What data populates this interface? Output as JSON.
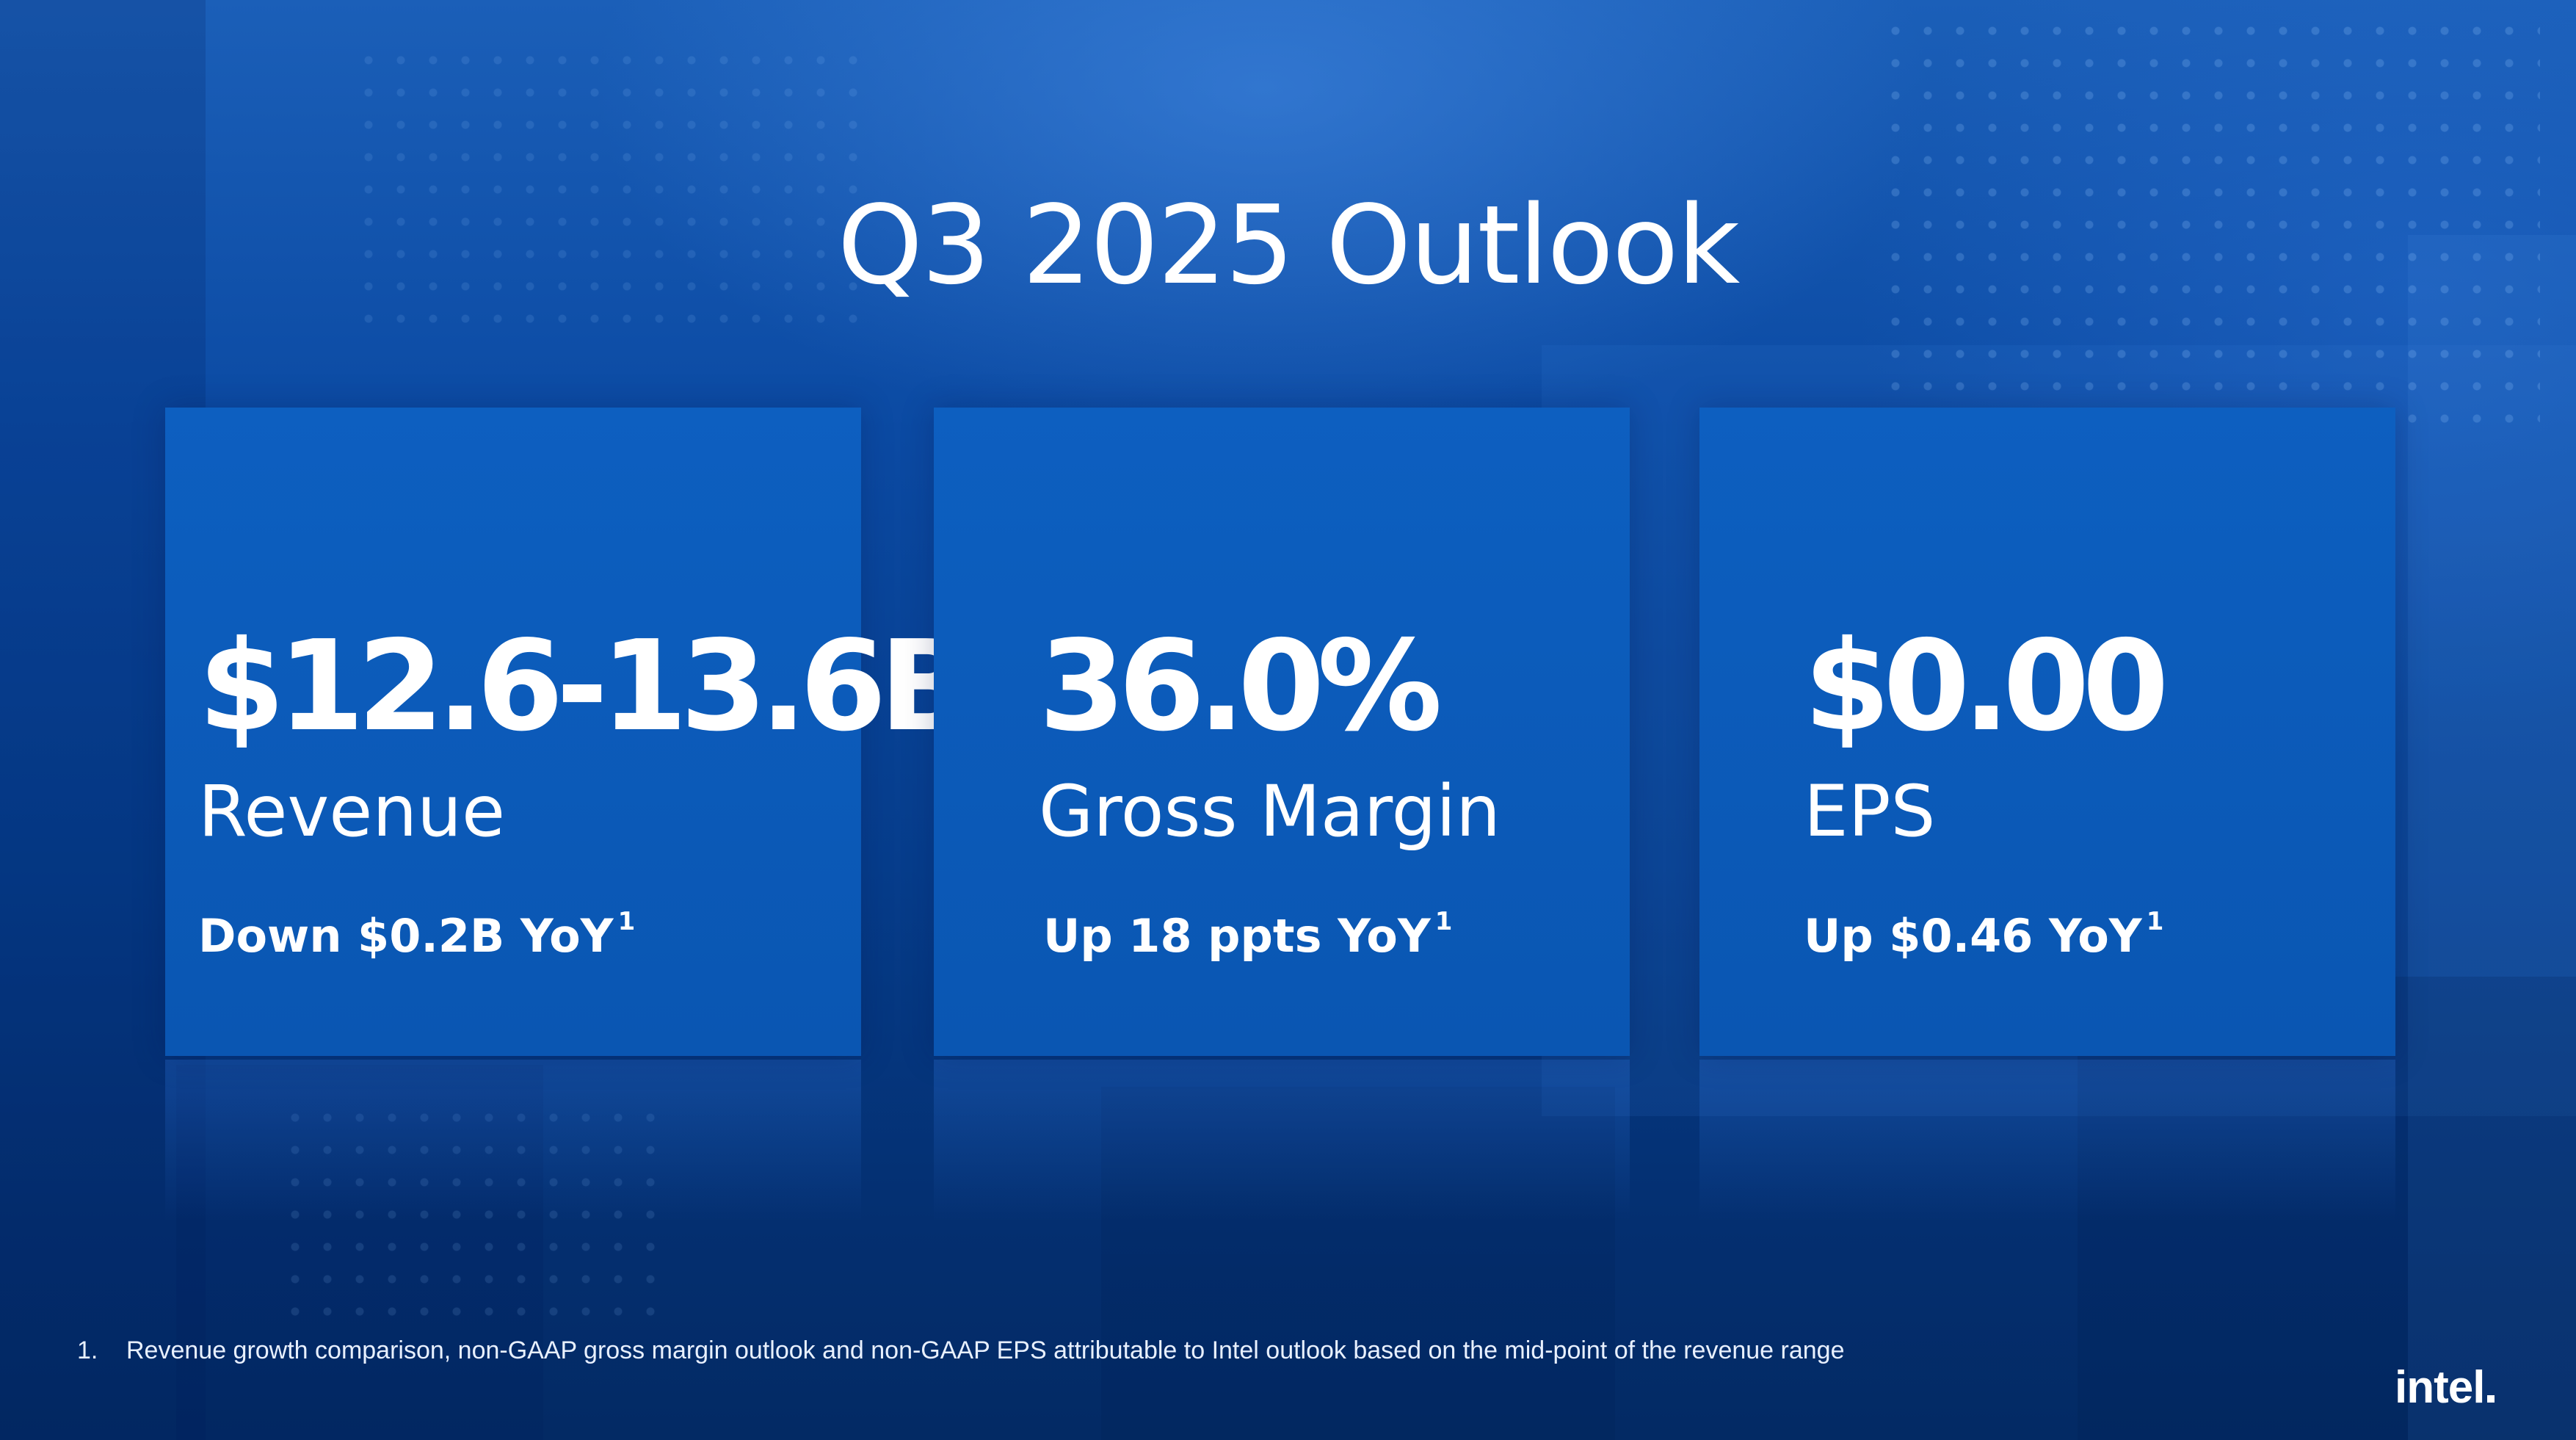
{
  "slide": {
    "title": "Q3 2025 Outlook"
  },
  "cards": [
    {
      "value": "$12.6-13.6B",
      "label": "Revenue",
      "change": "Down $0.2B YoY",
      "footnote_ref": "1"
    },
    {
      "value": "36.0%",
      "label": "Gross Margin",
      "change": "Up 18 ppts YoY",
      "footnote_ref": "1"
    },
    {
      "value": "$0.00",
      "label": "EPS",
      "change": "Up $0.46 YoY",
      "footnote_ref": "1"
    }
  ],
  "footnote": {
    "number": "1.",
    "text": "Revenue growth comparison, non-GAAP gross margin outlook and non-GAAP EPS attributable to Intel outlook based on the mid-point of the revenue range"
  },
  "logo": {
    "text": "intel"
  },
  "colors": {
    "background": "#0b4aa3",
    "card": "#0a56b2",
    "text": "#ffffff"
  }
}
